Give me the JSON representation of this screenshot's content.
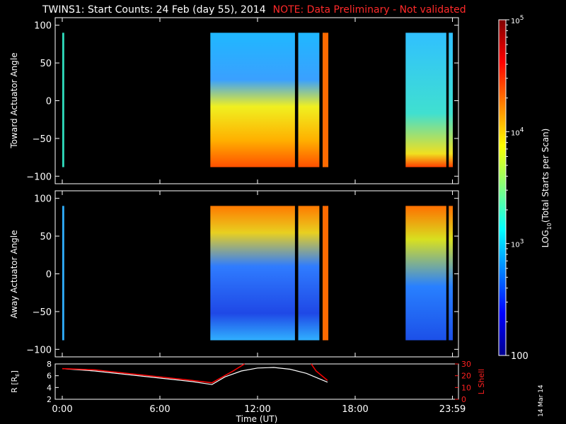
{
  "title": "TWINS1: Start Counts: 24 Feb (day  55), 2014",
  "note": "NOTE: Data Preliminary - Not validated",
  "date_stamp": "14 Mar 14",
  "chart_data": [
    {
      "type": "heatmap",
      "panel": "toward",
      "ylabel": "Toward Actuator Angle",
      "ylim": [
        -110,
        110
      ],
      "yticks": [
        "100",
        "50",
        "0",
        "−50",
        "−100"
      ],
      "ytick_values": [
        100,
        50,
        0,
        -50,
        -100
      ],
      "data_angle_range": [
        -88,
        90
      ],
      "xlim_hours": [
        0,
        24
      ],
      "data_segments_hours": [
        [
          0.0,
          0.12
        ],
        [
          9.1,
          14.3
        ],
        [
          14.5,
          15.8
        ],
        [
          16.0,
          16.35
        ],
        [
          21.1,
          23.6
        ],
        [
          23.75,
          24.0
        ]
      ]
    },
    {
      "type": "heatmap",
      "panel": "away",
      "ylabel": "Away Actuator Angle",
      "ylim": [
        -110,
        110
      ],
      "yticks": [
        "100",
        "50",
        "0",
        "−50",
        "−100"
      ],
      "ytick_values": [
        100,
        50,
        0,
        -50,
        -100
      ],
      "data_angle_range": [
        -88,
        90
      ],
      "xlim_hours": [
        0,
        24
      ],
      "data_segments_hours": [
        [
          0.0,
          0.12
        ],
        [
          9.1,
          14.3
        ],
        [
          14.5,
          15.8
        ],
        [
          16.0,
          16.35
        ],
        [
          21.1,
          23.6
        ],
        [
          23.75,
          24.0
        ]
      ]
    },
    {
      "type": "line",
      "panel": "orbit",
      "ylabel_left": "R [R",
      "ylabel_left_sub": "E",
      "ylabel_right": "L Shell",
      "ylim_left": [
        2,
        8
      ],
      "ylim_right": [
        0,
        30
      ],
      "yticks_left": [
        "8",
        "6",
        "4",
        "2"
      ],
      "yticks_left_values": [
        8,
        6,
        4,
        2
      ],
      "yticks_right": [
        "30",
        "20",
        "10",
        "0"
      ],
      "yticks_right_values": [
        30,
        20,
        10,
        0
      ],
      "xlabel": "Time (UT)",
      "xticks": [
        "0:00",
        "6:00",
        "12:00",
        "18:00",
        "23:59"
      ],
      "xtick_hours": [
        0,
        6,
        12,
        18,
        23.98
      ],
      "xlim_hours": [
        0,
        24
      ],
      "series": [
        {
          "color": "#ffffff",
          "x": [
            0,
            2,
            4,
            6,
            8,
            9.2,
            10,
            11,
            12,
            13,
            14,
            15,
            16.3
          ],
          "y": [
            7.2,
            6.8,
            6.2,
            5.6,
            5.0,
            4.5,
            5.8,
            6.8,
            7.3,
            7.4,
            7.1,
            6.4,
            4.9
          ]
        },
        {
          "color": "#ff0000",
          "axis": "right",
          "segments": [
            {
              "x": [
                0,
                2,
                4,
                6,
                8,
                9.2,
                10.5,
                11.2
              ],
              "y": [
                26,
                25,
                22,
                19,
                16,
                14,
                24,
                30
              ]
            },
            {
              "x": [
                15.3,
                15.6,
                16.3
              ],
              "y": [
                30,
                24,
                16
              ]
            }
          ]
        }
      ]
    }
  ],
  "colorbar": {
    "label_main": "LOG",
    "label_sub": "10",
    "label_rest": "(Total Starts per Scan)",
    "ticks": [
      {
        "base": "10",
        "exp": "5",
        "value": 100000
      },
      {
        "base": "10",
        "exp": "4",
        "value": 10000
      },
      {
        "base": "10",
        "exp": "3",
        "value": 1000
      },
      {
        "base": "100",
        "exp": "",
        "value": 100
      }
    ],
    "range": [
      100,
      100000
    ]
  }
}
